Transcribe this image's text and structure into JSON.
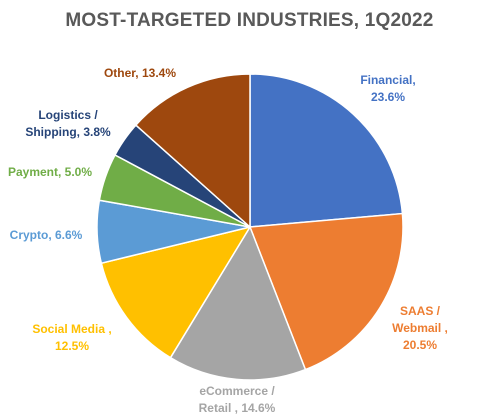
{
  "chart_data": {
    "type": "pie",
    "title": "MOST-TARGETED INDUSTRIES, 1Q2022",
    "slices": [
      {
        "label_lines": [
          "Financial,",
          "23.6%"
        ],
        "value": 23.6,
        "color": "#4472C4"
      },
      {
        "label_lines": [
          "SAAS /",
          "Webmail ,",
          "20.5%"
        ],
        "value": 20.5,
        "color": "#ED7D31"
      },
      {
        "label_lines": [
          "eCommerce /",
          "Retail , 14.6%"
        ],
        "value": 14.6,
        "color": "#A5A5A5"
      },
      {
        "label_lines": [
          "Social Media ,",
          "12.5%"
        ],
        "value": 12.5,
        "color": "#FFC000"
      },
      {
        "label_lines": [
          "Crypto, 6.6%"
        ],
        "value": 6.6,
        "color": "#5B9BD5"
      },
      {
        "label_lines": [
          "Payment, 5.0%"
        ],
        "value": 5.0,
        "color": "#70AD47"
      },
      {
        "label_lines": [
          "Logistics /",
          "Shipping, 3.8%"
        ],
        "value": 3.8,
        "color": "#264478"
      },
      {
        "label_lines": [
          "Other, 13.4%"
        ],
        "value": 13.4,
        "color": "#9E480E"
      }
    ],
    "legend": "none",
    "label_placement": "outside"
  }
}
